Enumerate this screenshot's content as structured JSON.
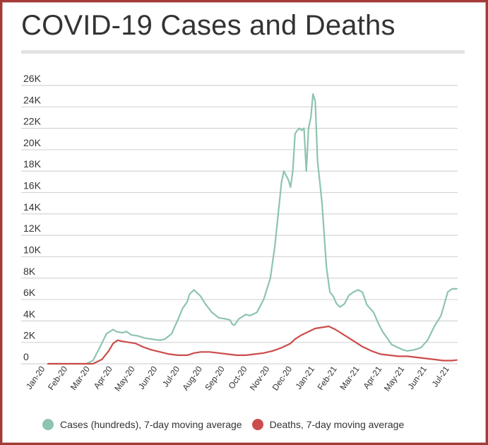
{
  "title": "COVID-19 Cases and Deaths",
  "colors": {
    "cases": "#8dc4ae",
    "deaths": "#cc4c4c",
    "grid": "#d4d4d4",
    "text": "#333333",
    "frame": "#a33a36"
  },
  "legend": [
    {
      "label": "Cases (hundreds), 7-day moving average",
      "color": "#8dc4ae"
    },
    {
      "label": "Deaths, 7-day moving average",
      "color": "#cc4c4c"
    }
  ],
  "chart_data": {
    "type": "line",
    "title": "COVID-19 Cases and Deaths",
    "ylim": [
      0,
      26000
    ],
    "yticks": [
      0,
      2000,
      4000,
      6000,
      8000,
      10000,
      12000,
      14000,
      16000,
      18000,
      20000,
      22000,
      24000,
      26000
    ],
    "ytick_labels": [
      "0",
      "2K",
      "4K",
      "6K",
      "8K",
      "10K",
      "12K",
      "14K",
      "16K",
      "18K",
      "20K",
      "22K",
      "24K",
      "26K"
    ],
    "xlim": [
      0,
      18.2
    ],
    "categories": [
      "Jan-20",
      "Feb-20",
      "Mar-20",
      "Apr-20",
      "May-20",
      "Jun-20",
      "Jul-20",
      "Aug-20",
      "Sep-20",
      "Oct-20",
      "Nov-20",
      "Dec-20",
      "Jan-21",
      "Feb-21",
      "Mar-21",
      "Apr-21",
      "May-21",
      "Jun-21",
      "Jul-21"
    ],
    "grid": true,
    "legend_position": "bottom",
    "series": [
      {
        "name": "Cases (hundreds), 7-day moving average",
        "x": [
          0,
          1,
          1.7,
          2.0,
          2.3,
          2.6,
          2.9,
          3.05,
          3.3,
          3.5,
          3.7,
          4.0,
          4.3,
          4.6,
          5.0,
          5.2,
          5.5,
          5.8,
          6.0,
          6.2,
          6.3,
          6.5,
          6.8,
          7.0,
          7.3,
          7.6,
          7.9,
          8.1,
          8.2,
          8.3,
          8.5,
          8.8,
          9.0,
          9.3,
          9.6,
          9.9,
          10.1,
          10.3,
          10.4,
          10.5,
          10.7,
          10.8,
          10.9,
          11.0,
          11.1,
          11.2,
          11.3,
          11.4,
          11.5,
          11.6,
          11.7,
          11.8,
          11.9,
          12.0,
          12.1,
          12.2,
          12.3,
          12.4,
          12.55,
          12.7,
          12.85,
          13.0,
          13.2,
          13.4,
          13.6,
          13.8,
          14.0,
          14.2,
          14.5,
          14.7,
          14.9,
          15.1,
          15.3,
          15.5,
          15.8,
          16.0,
          16.3,
          16.6,
          16.9,
          17.2,
          17.5,
          17.8,
          18.0,
          18.2
        ],
        "values": [
          0,
          0,
          0,
          300,
          1500,
          2800,
          3200,
          3000,
          2900,
          3000,
          2700,
          2600,
          2400,
          2300,
          2200,
          2300,
          2800,
          4200,
          5200,
          5800,
          6500,
          6900,
          6300,
          5600,
          4800,
          4300,
          4200,
          4100,
          3700,
          3600,
          4200,
          4600,
          4500,
          4800,
          6000,
          8000,
          11000,
          15000,
          17000,
          18000,
          17200,
          16500,
          18000,
          21500,
          21800,
          22000,
          21800,
          22000,
          18000,
          22000,
          23000,
          25200,
          24500,
          19000,
          17000,
          15000,
          12000,
          9000,
          6700,
          6300,
          5600,
          5300,
          5600,
          6400,
          6700,
          6900,
          6700,
          5500,
          4800,
          3800,
          3000,
          2400,
          1800,
          1600,
          1300,
          1200,
          1300,
          1500,
          2200,
          3500,
          4500,
          6700,
          7000,
          7000
        ],
        "color": "#8dc4ae"
      },
      {
        "name": "Deaths, 7-day moving average",
        "x": [
          0,
          1,
          2.0,
          2.4,
          2.7,
          2.9,
          3.1,
          3.3,
          3.6,
          3.9,
          4.2,
          4.6,
          5.0,
          5.4,
          5.8,
          6.2,
          6.5,
          6.8,
          7.2,
          7.6,
          8.0,
          8.4,
          8.8,
          9.2,
          9.6,
          10.0,
          10.4,
          10.8,
          11.0,
          11.3,
          11.6,
          11.9,
          12.2,
          12.5,
          12.8,
          13.1,
          13.4,
          13.7,
          14.0,
          14.4,
          14.8,
          15.2,
          15.6,
          16.0,
          16.4,
          16.8,
          17.2,
          17.6,
          18.0,
          18.2
        ],
        "values": [
          0,
          0,
          0,
          400,
          1200,
          1900,
          2200,
          2100,
          2000,
          1900,
          1600,
          1300,
          1100,
          900,
          800,
          800,
          1000,
          1100,
          1100,
          1000,
          900,
          800,
          800,
          900,
          1000,
          1200,
          1500,
          1900,
          2300,
          2700,
          3000,
          3300,
          3400,
          3500,
          3200,
          2800,
          2400,
          2000,
          1600,
          1200,
          900,
          800,
          700,
          700,
          600,
          500,
          400,
          300,
          300,
          350
        ],
        "color": "#cc4c4c"
      }
    ]
  }
}
